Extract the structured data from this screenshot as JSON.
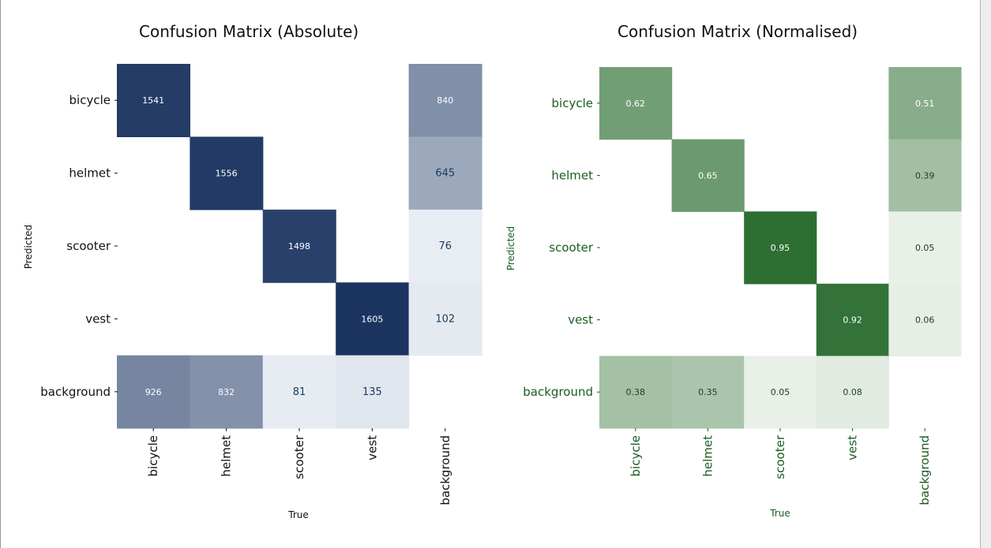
{
  "chart_data": [
    {
      "type": "heatmap",
      "title": "Confusion Matrix (Absolute)",
      "xlabel": "True",
      "ylabel": "Predicted",
      "x_categories": [
        "bicycle",
        "helmet",
        "scooter",
        "vest",
        "background"
      ],
      "y_categories": [
        "bicycle",
        "helmet",
        "scooter",
        "vest",
        "background"
      ],
      "values": [
        [
          1541,
          null,
          null,
          null,
          840
        ],
        [
          null,
          1556,
          null,
          null,
          645
        ],
        [
          null,
          null,
          1498,
          null,
          76
        ],
        [
          null,
          null,
          null,
          1605,
          102
        ],
        [
          926,
          832,
          81,
          135,
          null
        ]
      ],
      "value_labels": [
        [
          "1541",
          "",
          "",
          "",
          "840"
        ],
        [
          "",
          "1556",
          "",
          "",
          "645"
        ],
        [
          "",
          "",
          "1498",
          "",
          "76"
        ],
        [
          "",
          "",
          "",
          "1605",
          "102"
        ],
        [
          "926",
          "832",
          "81",
          "135",
          ""
        ]
      ],
      "color_scale": [
        "#f2f6fa",
        "#1b3460"
      ],
      "vmax": 1605,
      "label_color": "#111111",
      "colorbar": false
    },
    {
      "type": "heatmap",
      "title": "Confusion Matrix (Normalised)",
      "xlabel": "True",
      "ylabel": "Predicted",
      "x_categories": [
        "bicycle",
        "helmet",
        "scooter",
        "vest",
        "background"
      ],
      "y_categories": [
        "bicycle",
        "helmet",
        "scooter",
        "vest",
        "background"
      ],
      "values": [
        [
          0.62,
          null,
          null,
          null,
          0.51
        ],
        [
          null,
          0.65,
          null,
          null,
          0.39
        ],
        [
          null,
          null,
          0.95,
          null,
          0.05
        ],
        [
          null,
          null,
          null,
          0.92,
          0.06
        ],
        [
          0.38,
          0.35,
          0.05,
          0.08,
          null
        ]
      ],
      "value_labels": [
        [
          "0.62",
          "",
          "",
          "",
          "0.51"
        ],
        [
          "",
          "0.65",
          "",
          "",
          "0.39"
        ],
        [
          "",
          "",
          "0.95",
          "",
          "0.05"
        ],
        [
          "",
          "",
          "",
          "0.92",
          "0.06"
        ],
        [
          "0.38",
          "0.35",
          "0.05",
          "0.08",
          ""
        ]
      ],
      "color_scale": [
        "#f3f7f2",
        "#2d6e32"
      ],
      "vmax": 0.95,
      "label_color": "#1a5c1f",
      "colorbar": false
    }
  ]
}
